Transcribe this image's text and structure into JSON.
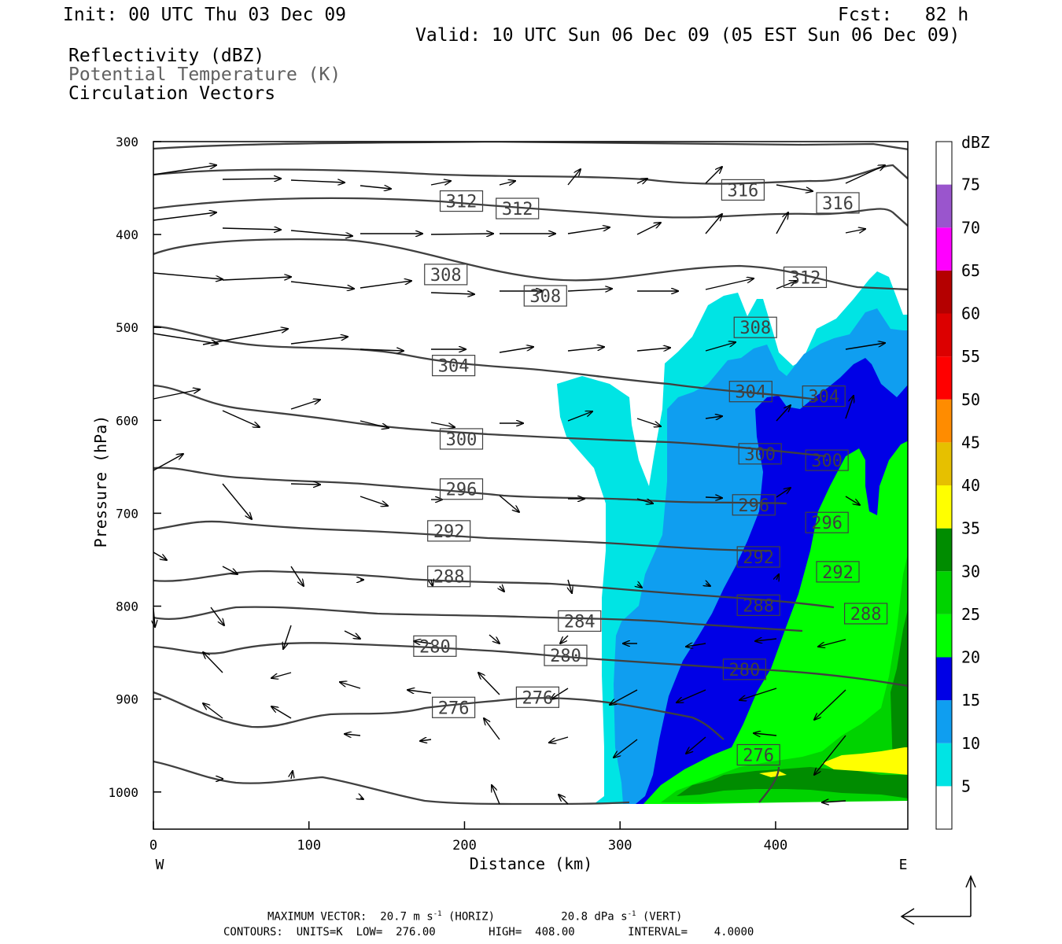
{
  "header": {
    "init": "Init: 00 UTC Thu 03 Dec 09",
    "fcst": "Fcst:   82 h",
    "valid": "Valid: 10 UTC Sun 06 Dec 09 (05 EST Sun 06 Dec 09)",
    "field1": "Reflectivity (dBZ)",
    "field2": "Potential Temperature (K)",
    "field3": "Circulation Vectors"
  },
  "footer": {
    "line1_prefix": "MAXIMUM VECTOR:  20.7 m s",
    "line1_mid": " (HORIZ)          20.8 dPa s",
    "line1_end": " (VERT)",
    "exp": "-1",
    "line2": "CONTOURS:  UNITS=K  LOW=  276.00        HIGH=  408.00        INTERVAL=    4.0000"
  },
  "chart_data": {
    "type": "cross-section",
    "xlabel": "Distance (km)",
    "ylabel": "Pressure (hPa)",
    "xlim": [
      0,
      485
    ],
    "ylim": [
      1040,
      300
    ],
    "x_ticks": [
      "0",
      "100",
      "200",
      "300",
      "400"
    ],
    "y_ticks": [
      "300",
      "400",
      "500",
      "600",
      "700",
      "800",
      "900",
      "1000"
    ],
    "x_left_label": "W",
    "x_right_label": "E",
    "colorbar": {
      "title": "dBZ",
      "ticks": [
        "5",
        "10",
        "15",
        "20",
        "25",
        "30",
        "35",
        "40",
        "45",
        "50",
        "55",
        "60",
        "65",
        "70",
        "75"
      ],
      "colors": [
        "#ffffff",
        "#00e4e4",
        "#0f9ef0",
        "#0000e6",
        "#00ff00",
        "#00d300",
        "#008c00",
        "#ffff00",
        "#e6c000",
        "#ff8c00",
        "#ff0000",
        "#dc0000",
        "#b40000",
        "#ff00ff",
        "#9a55cd"
      ]
    },
    "theta_labels": [
      {
        "text": "312",
        "x": 198,
        "p": 364
      },
      {
        "text": "312",
        "x": 234,
        "p": 372
      },
      {
        "text": "316",
        "x": 379,
        "p": 352
      },
      {
        "text": "316",
        "x": 440,
        "p": 366
      },
      {
        "text": "308",
        "x": 188,
        "p": 443
      },
      {
        "text": "308",
        "x": 252,
        "p": 466
      },
      {
        "text": "312",
        "x": 419,
        "p": 446
      },
      {
        "text": "308",
        "x": 387,
        "p": 500
      },
      {
        "text": "304",
        "x": 193,
        "p": 541
      },
      {
        "text": "304",
        "x": 384,
        "p": 569
      },
      {
        "text": "304",
        "x": 431,
        "p": 574
      },
      {
        "text": "300",
        "x": 198,
        "p": 620
      },
      {
        "text": "300",
        "x": 390,
        "p": 636
      },
      {
        "text": "300",
        "x": 433,
        "p": 643
      },
      {
        "text": "296",
        "x": 198,
        "p": 674
      },
      {
        "text": "296",
        "x": 386,
        "p": 691
      },
      {
        "text": "296",
        "x": 433,
        "p": 710
      },
      {
        "text": "292",
        "x": 190,
        "p": 719
      },
      {
        "text": "292",
        "x": 389,
        "p": 747
      },
      {
        "text": "292",
        "x": 440,
        "p": 763
      },
      {
        "text": "288",
        "x": 190,
        "p": 768
      },
      {
        "text": "288",
        "x": 389,
        "p": 799
      },
      {
        "text": "288",
        "x": 458,
        "p": 808
      },
      {
        "text": "284",
        "x": 274,
        "p": 816
      },
      {
        "text": "280",
        "x": 181,
        "p": 843
      },
      {
        "text": "280",
        "x": 265,
        "p": 853
      },
      {
        "text": "280",
        "x": 380,
        "p": 868
      },
      {
        "text": "276",
        "x": 193,
        "p": 909
      },
      {
        "text": "276",
        "x": 247,
        "p": 898
      },
      {
        "text": "276",
        "x": 389,
        "p": 960
      }
    ]
  }
}
